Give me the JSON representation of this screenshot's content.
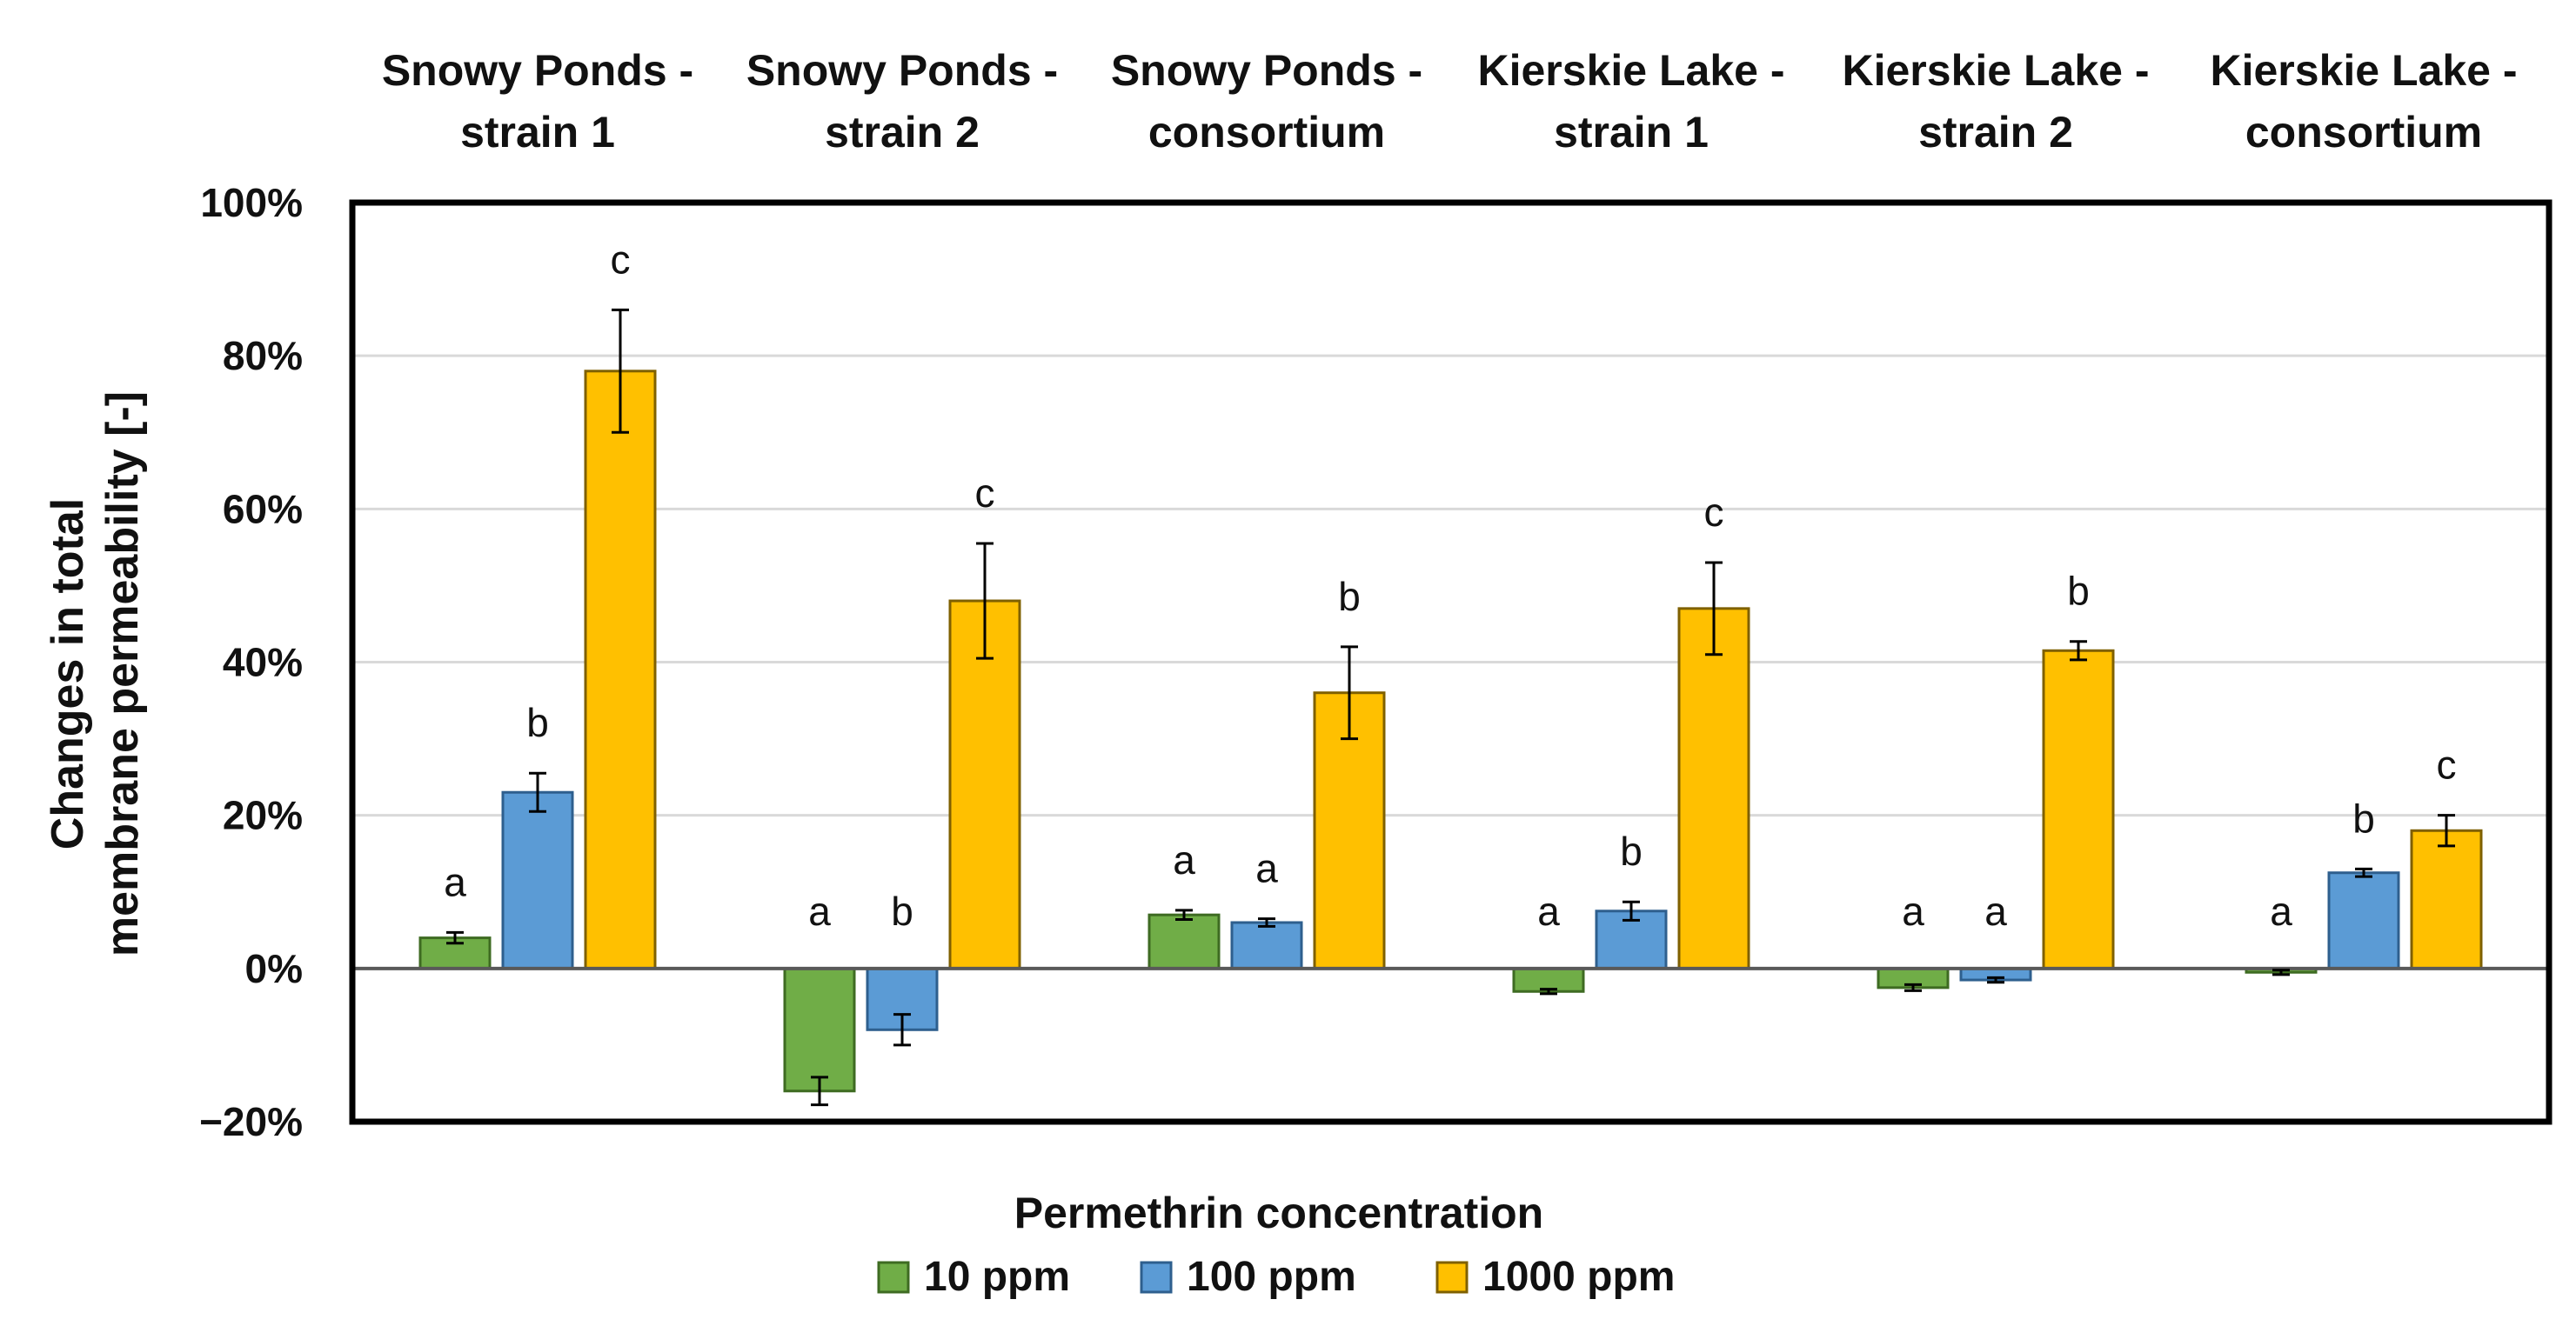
{
  "chart_data": {
    "type": "bar",
    "title": "",
    "xlabel": "Permethrin concentration",
    "ylabel_line1": "Changes in total",
    "ylabel_line2": "membrane permeability [-]",
    "ylim": [
      -20,
      100
    ],
    "yticks": [
      -20,
      0,
      20,
      40,
      60,
      80,
      100
    ],
    "ytick_labels": [
      "−20%",
      "0%",
      "20%",
      "40%",
      "60%",
      "80%",
      "100%"
    ],
    "grid": true,
    "legend_position": "bottom",
    "categories": [
      [
        "Snowy Ponds -",
        "strain 1"
      ],
      [
        "Snowy Ponds -",
        "strain 2"
      ],
      [
        "Snowy Ponds -",
        "consortium"
      ],
      [
        "Kierskie Lake -",
        "strain 1"
      ],
      [
        "Kierskie Lake -",
        "strain 2"
      ],
      [
        "Kierskie Lake -",
        "consortium"
      ]
    ],
    "series": [
      {
        "name": "10 ppm",
        "color": "#70ad47",
        "values": [
          4,
          -16,
          7,
          -3,
          -2.5,
          -0.5
        ],
        "errors": [
          0.7,
          1.8,
          0.6,
          0.3,
          0.4,
          0.3
        ],
        "letters": [
          "a",
          "a",
          "a",
          "a",
          "a",
          "a"
        ]
      },
      {
        "name": "100 ppm",
        "color": "#5b9bd5",
        "values": [
          23,
          -8,
          6,
          7.5,
          -1.5,
          12.5
        ],
        "errors": [
          2.5,
          2,
          0.5,
          1.2,
          0.3,
          0.5
        ],
        "letters": [
          "b",
          "b",
          "a",
          "b",
          "a",
          "b"
        ]
      },
      {
        "name": "1000 ppm",
        "color": "#ffc000",
        "values": [
          78,
          48,
          36,
          47,
          41.5,
          18
        ],
        "errors": [
          8,
          7.5,
          6,
          6,
          1.2,
          2
        ],
        "letters": [
          "c",
          "c",
          "b",
          "c",
          "b",
          "c"
        ]
      }
    ]
  }
}
